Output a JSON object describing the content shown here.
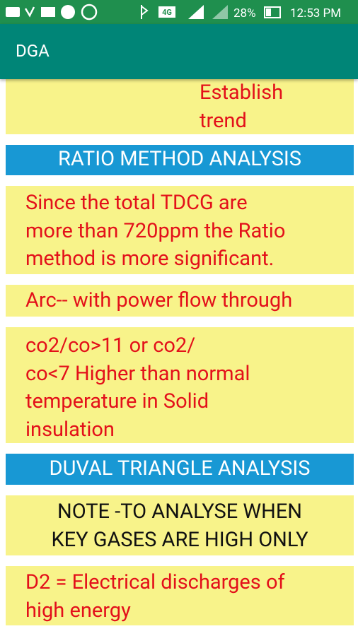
{
  "status_bar": {
    "network": "4G",
    "battery": "28%",
    "time": "12:53 PM"
  },
  "app_bar": {
    "title": "DGA"
  },
  "blocks": [
    {
      "kind": "card",
      "lines": [
        "Establish",
        "trend"
      ]
    },
    {
      "kind": "header",
      "lines": [
        "RATIO METHOD ANALYSIS"
      ]
    },
    {
      "kind": "card",
      "lines": [
        "Since the total TDCG are",
        "more than 720ppm the Ratio",
        "method is more significant."
      ]
    },
    {
      "kind": "card",
      "lines": [
        "Arc-- with power flow through"
      ]
    },
    {
      "kind": "card",
      "lines": [
        "co2/co>11 or co2/",
        "co<7 Higher than normal",
        "temperature in Solid",
        "insulation"
      ]
    },
    {
      "kind": "header",
      "lines": [
        "DUVAL TRIANGLE ANALYSIS"
      ]
    },
    {
      "kind": "note",
      "lines": [
        "NOTE -TO ANALYSE WHEN",
        "KEY GASES ARE HIGH ONLY"
      ]
    },
    {
      "kind": "card",
      "lines": [
        "D2 = Electrical discharges of",
        "high energy"
      ]
    }
  ]
}
